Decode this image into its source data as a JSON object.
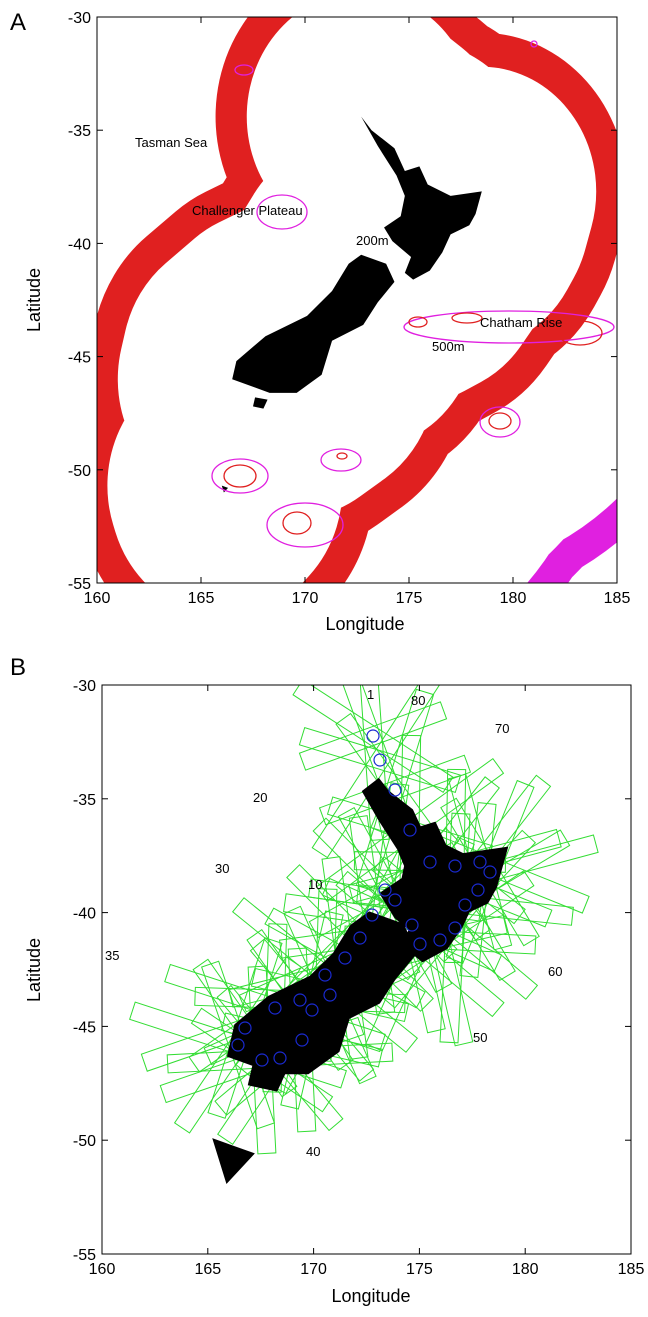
{
  "chart_data": [
    {
      "type": "map",
      "panel": "A",
      "xlabel": "Longitude",
      "ylabel": "Latitude",
      "xlim": [
        160,
        185
      ],
      "ylim": [
        -55,
        -30
      ],
      "xticks": [
        160,
        165,
        170,
        175,
        180,
        185
      ],
      "yticks": [
        -55,
        -50,
        -45,
        -40,
        -35,
        -30
      ],
      "annotations": [
        "Tasman Sea",
        "Challenger Plateau",
        "200m",
        "Chatham Rise",
        "500m"
      ]
    },
    {
      "type": "map",
      "panel": "B",
      "xlabel": "Longitude",
      "ylabel": "Latitude",
      "xlim": [
        160,
        185
      ],
      "ylim": [
        -55,
        -30
      ],
      "xticks": [
        160,
        165,
        170,
        175,
        180,
        185
      ],
      "yticks": [
        -55,
        -50,
        -45,
        -40,
        -35,
        -30
      ],
      "annotations": [
        "1",
        "80",
        "70",
        "20",
        "30",
        "10",
        "35",
        "60",
        "50",
        "40"
      ]
    }
  ]
}
